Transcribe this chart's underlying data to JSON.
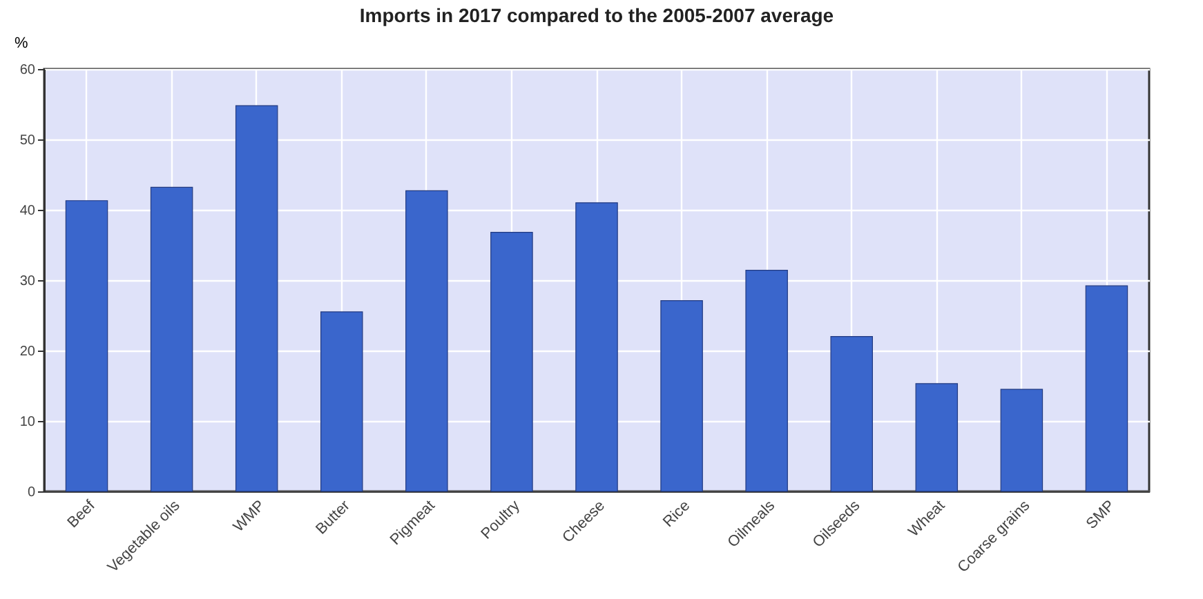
{
  "chart_data": {
    "type": "bar",
    "title": "Imports in 2017 compared to the 2005-2007 average",
    "ylabel": "%",
    "categories": [
      "Beef",
      "Vegetable oils",
      "WMP",
      "Butter",
      "Pigmeat",
      "Poultry",
      "Cheese",
      "Rice",
      "Oilmeals",
      "Oilseeds",
      "Wheat",
      "Coarse grains",
      "SMP"
    ],
    "values": [
      41.3,
      43.2,
      54.8,
      25.5,
      42.7,
      36.8,
      41,
      27.1,
      31.4,
      22,
      15.3,
      14.5,
      29.2
    ],
    "color": "#3a66cc",
    "ylim": [
      0,
      60
    ],
    "yticks": [
      0,
      10,
      20,
      30,
      40,
      50,
      60
    ],
    "grid": true
  }
}
